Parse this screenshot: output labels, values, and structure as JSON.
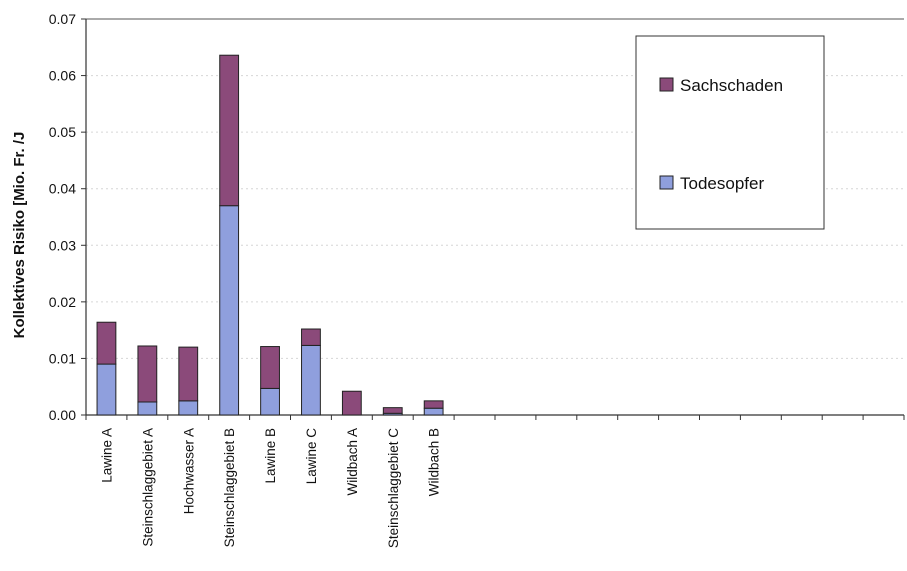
{
  "chart_data": {
    "type": "bar",
    "stacked": true,
    "categories": [
      "Lawine A",
      "Steinschlaggebiet A",
      "Hochwasser A",
      "Steinschlaggebiet B",
      "Lawine B",
      "Lawine C",
      "Wildbach A",
      "Steinschlaggebiet C",
      "Wildbach B"
    ],
    "series": [
      {
        "name": "Todesopfer",
        "values": [
          0.009,
          0.0023,
          0.0025,
          0.037,
          0.0047,
          0.0123,
          0.0,
          0.0003,
          0.0012
        ],
        "color": "#8f9fdd"
      },
      {
        "name": "Sachschaden",
        "values": [
          0.0074,
          0.0099,
          0.0095,
          0.0266,
          0.0074,
          0.0029,
          0.0042,
          0.001,
          0.0013
        ],
        "color": "#8b4a7a"
      }
    ],
    "xlabel": "",
    "ylabel": "Kollektives Risiko [Mio. Fr. /J",
    "ylim": [
      0,
      0.07
    ],
    "yticks": [
      "0.00",
      "0.01",
      "0.02",
      "0.03",
      "0.04",
      "0.05",
      "0.06",
      "0.07"
    ],
    "grid": true,
    "legend": "top-right",
    "legend_order": [
      "Sachschaden",
      "Todesopfer"
    ],
    "total_category_slots": 20
  }
}
